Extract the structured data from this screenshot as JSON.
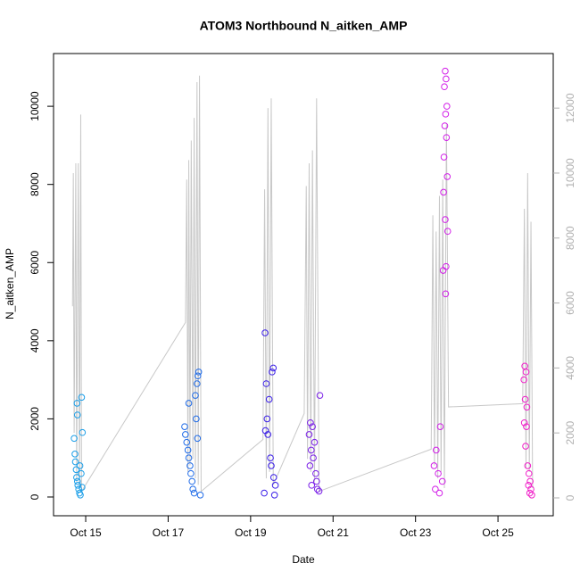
{
  "chart_data": {
    "type": "scatter",
    "title": "ATOM3 Northbound N_aitken_AMP",
    "x_label": "Date",
    "y_label": "N_aitken_AMP",
    "xlim": [
      14.22,
      26.34
    ],
    "ylim": [
      -480,
      11350
    ],
    "y2lim": [
      -550,
      13680
    ],
    "xticks": [
      {
        "value": 15,
        "label": "Oct 15"
      },
      {
        "value": 17,
        "label": "Oct 17"
      },
      {
        "value": 19,
        "label": "Oct 19"
      },
      {
        "value": 21,
        "label": "Oct 21"
      },
      {
        "value": 23,
        "label": "Oct 23"
      },
      {
        "value": 25,
        "label": "Oct 25"
      }
    ],
    "yticks": [
      0,
      2000,
      4000,
      6000,
      8000,
      10000
    ],
    "y2ticks": [
      0,
      2000,
      4000,
      6000,
      8000,
      10000,
      12000
    ],
    "series": [
      {
        "color": "#1a9ee8",
        "x": [
          14.72,
          14.74,
          14.75,
          14.77,
          14.78,
          14.8,
          14.81,
          14.83,
          14.85,
          14.87,
          14.79,
          14.8,
          14.9,
          14.92,
          14.86,
          14.89,
          14.91
        ],
        "values": [
          1500,
          1100,
          900,
          700,
          500,
          400,
          300,
          200,
          100,
          50,
          2400,
          2100,
          2550,
          1650,
          800,
          600,
          250
        ]
      },
      {
        "color": "#1f6be8",
        "x": [
          17.4,
          17.42,
          17.45,
          17.48,
          17.5,
          17.53,
          17.55,
          17.58,
          17.6,
          17.63,
          17.5,
          17.72,
          17.74,
          17.7,
          17.66,
          17.68,
          17.71,
          17.78
        ],
        "values": [
          1800,
          1600,
          1400,
          1200,
          1000,
          800,
          600,
          400,
          200,
          100,
          2400,
          3100,
          3200,
          2900,
          2600,
          2000,
          1500,
          50
        ]
      },
      {
        "color": "#3a1ee8",
        "x": [
          19.35,
          19.55,
          19.52,
          19.38,
          19.45,
          19.4,
          19.36,
          19.42,
          19.48,
          19.5,
          19.56,
          19.6,
          19.33,
          19.58
        ],
        "values": [
          4200,
          3300,
          3200,
          2900,
          2500,
          2000,
          1700,
          1600,
          1000,
          800,
          500,
          300,
          100,
          50
        ]
      },
      {
        "color": "#7a1ee8",
        "x": [
          20.45,
          20.5,
          20.42,
          20.55,
          20.47,
          20.52,
          20.44,
          20.58,
          20.6,
          20.48,
          20.62,
          20.68,
          20.66
        ],
        "values": [
          1900,
          1800,
          1600,
          1400,
          1200,
          1000,
          800,
          600,
          400,
          300,
          200,
          2600,
          150
        ]
      },
      {
        "color": "#d21ee8",
        "x": [
          23.72,
          23.74,
          23.7,
          23.76,
          23.73,
          23.71,
          23.75,
          23.69,
          23.77,
          23.68,
          23.72,
          23.78,
          23.74,
          23.67,
          23.73,
          23.6,
          23.5,
          23.45,
          23.55,
          23.65,
          23.48,
          23.58
        ],
        "values": [
          10900,
          10700,
          10500,
          10000,
          9800,
          9500,
          9200,
          8700,
          8200,
          7800,
          7100,
          6800,
          5900,
          5800,
          5200,
          1800,
          1200,
          800,
          600,
          400,
          200,
          100
        ]
      },
      {
        "color": "#f01ec8",
        "x": [
          25.65,
          25.68,
          25.63,
          25.66,
          25.7,
          25.64,
          25.69,
          25.67,
          25.72,
          25.75,
          25.78,
          25.74,
          25.8,
          25.77,
          25.82
        ],
        "values": [
          3350,
          3200,
          3000,
          2500,
          2300,
          1900,
          1800,
          1300,
          800,
          600,
          400,
          300,
          200,
          100,
          50
        ]
      },
      {
        "color": "#c8c8c8",
        "axis": "y2",
        "x": [
          14.68,
          14.7,
          14.72,
          14.76,
          14.78,
          14.82,
          14.85,
          14.88,
          14.9,
          17.42,
          17.45,
          17.48,
          17.5,
          17.53,
          17.56,
          17.6,
          17.63,
          17.66,
          17.7,
          17.73,
          17.76,
          17.8,
          19.3,
          19.34,
          19.38,
          19.42,
          19.46,
          19.5,
          19.55,
          20.3,
          20.35,
          20.38,
          20.42,
          20.46,
          20.5,
          20.55,
          20.6,
          20.66,
          23.38,
          23.42,
          23.46,
          23.5,
          23.54,
          23.58,
          23.62,
          23.66,
          23.7,
          23.75,
          23.8,
          25.6,
          25.64,
          25.68,
          25.72,
          25.76,
          25.8,
          25.84
        ],
        "values": [
          5900,
          10000,
          2000,
          10300,
          500,
          10300,
          300,
          11800,
          200,
          5400,
          9800,
          800,
          10400,
          1000,
          11000,
          1200,
          11700,
          600,
          12800,
          400,
          13000,
          200,
          1800,
          9500,
          600,
          12000,
          800,
          12300,
          400,
          2600,
          9600,
          1200,
          10300,
          800,
          10700,
          500,
          12300,
          200,
          1500,
          8700,
          1000,
          8200,
          600,
          9300,
          800,
          9800,
          300,
          11500,
          2800,
          2900,
          8900,
          900,
          10000,
          800,
          8500,
          300
        ]
      }
    ]
  }
}
